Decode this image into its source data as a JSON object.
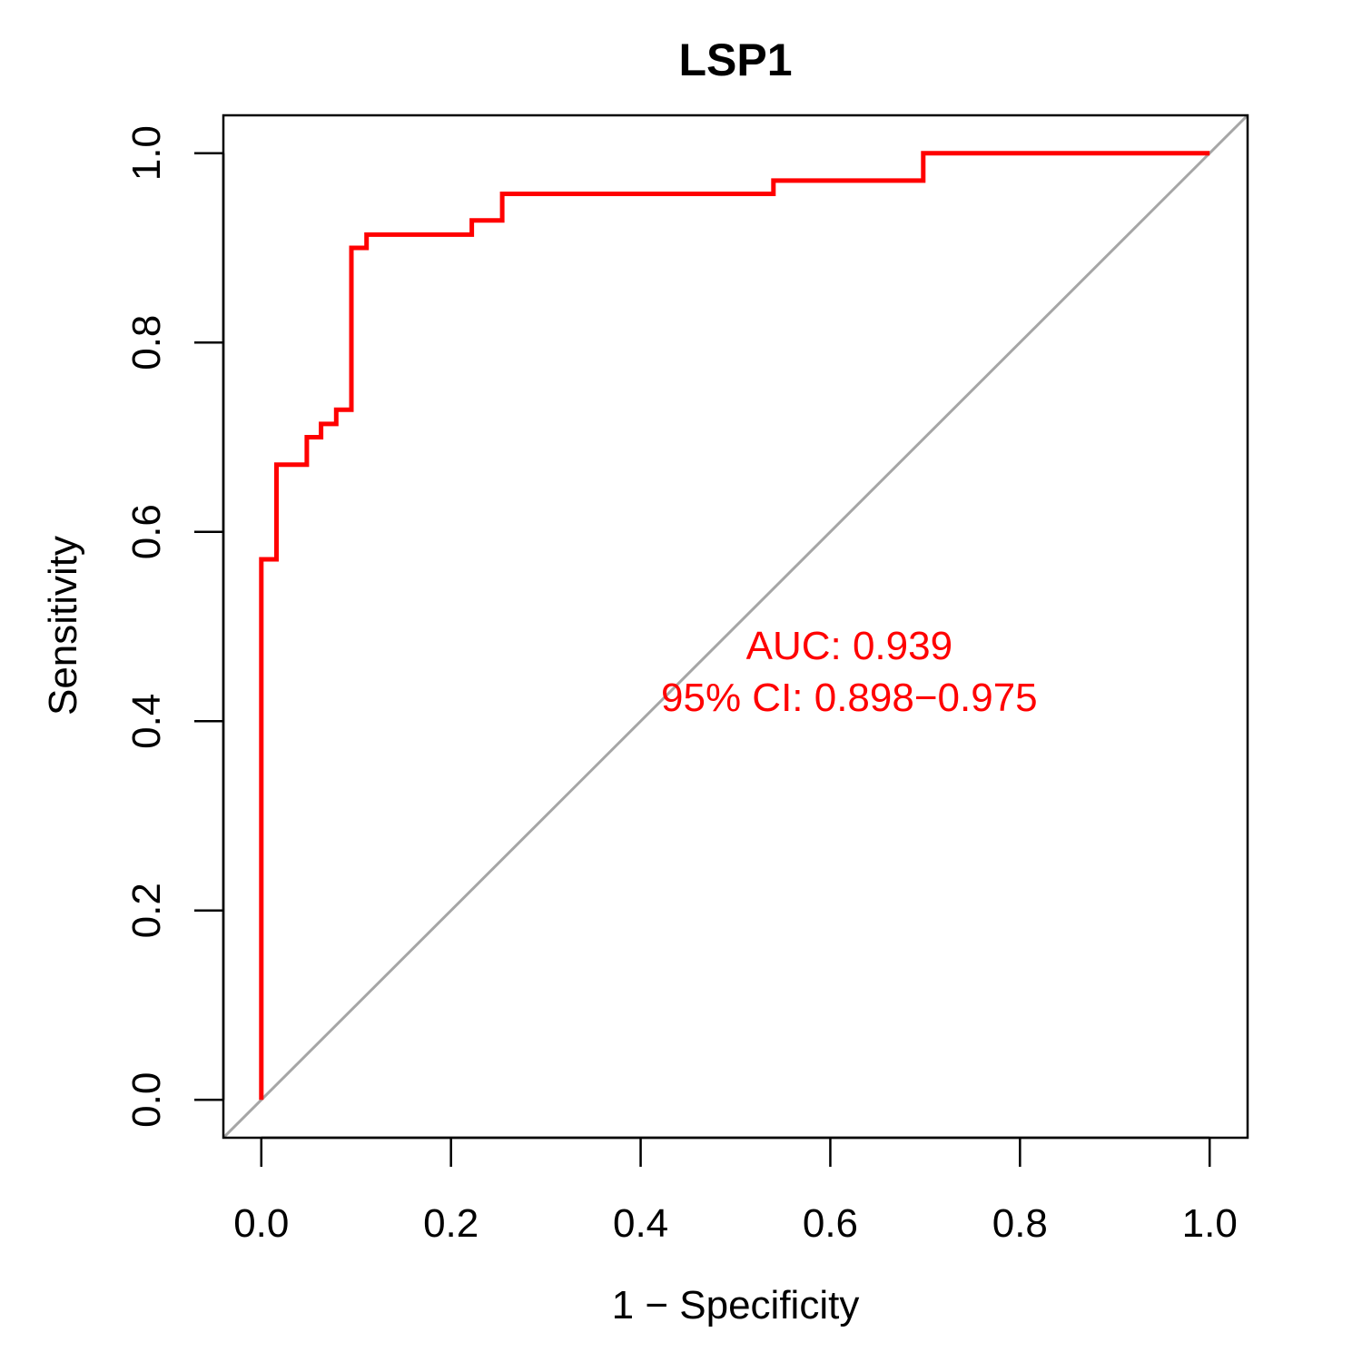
{
  "chart_data": {
    "type": "line",
    "title": "LSP1",
    "xlabel": "1 − Specificity",
    "ylabel": "Sensitivity",
    "xlim": [
      -0.04,
      1.04
    ],
    "ylim": [
      -0.04,
      1.04
    ],
    "xticks": [
      0.0,
      0.2,
      0.4,
      0.6,
      0.8,
      1.0
    ],
    "yticks": [
      0.0,
      0.2,
      0.4,
      0.6,
      0.8,
      1.0
    ],
    "xtick_labels": [
      "0.0",
      "0.2",
      "0.4",
      "0.6",
      "0.8",
      "1.0"
    ],
    "ytick_labels": [
      "0.0",
      "0.2",
      "0.4",
      "0.6",
      "0.8",
      "1.0"
    ],
    "grid": false,
    "legend": "none",
    "colors": {
      "roc": "#ff0000",
      "reference": "#a6a6a6",
      "frame": "#000000"
    },
    "series": [
      {
        "type": "step",
        "x": [
          0.0,
          0.0,
          0.016,
          0.016,
          0.048,
          0.048,
          0.063,
          0.063,
          0.079,
          0.079,
          0.095,
          0.095,
          0.111,
          0.111,
          0.222,
          0.222,
          0.254,
          0.254,
          0.54,
          0.54,
          0.698,
          0.698,
          1.0
        ],
        "y": [
          0.0,
          0.571,
          0.571,
          0.671,
          0.671,
          0.7,
          0.7,
          0.714,
          0.714,
          0.729,
          0.729,
          0.9,
          0.9,
          0.914,
          0.914,
          0.929,
          0.929,
          0.957,
          0.957,
          0.971,
          0.971,
          1.0,
          1.0
        ]
      },
      {
        "type": "reference",
        "x": [
          -0.04,
          1.04
        ],
        "y": [
          -0.04,
          1.04
        ]
      }
    ],
    "annotations": [
      {
        "text": "AUC: 0.939",
        "x": 0.62,
        "y": 0.48,
        "color": "#ff0000"
      },
      {
        "text": "95% CI: 0.898−0.975",
        "x": 0.62,
        "y": 0.425,
        "color": "#ff0000"
      }
    ]
  }
}
